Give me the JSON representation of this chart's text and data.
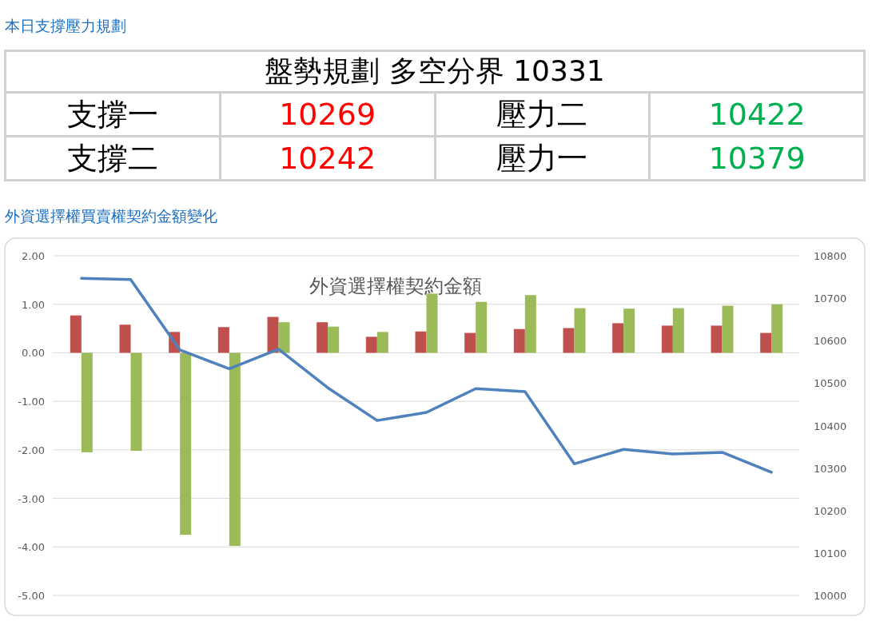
{
  "chart_data": [
    {
      "type": "other",
      "title": "本日支撐壓力規劃",
      "subtitle": "盤勢規劃 多空分界 10331",
      "annotations": [
        "支撐一",
        "10269",
        "壓力二",
        "10422",
        "支撐二",
        "10242",
        "壓力一",
        "10379"
      ],
      "colors": [
        "#000000",
        "#ff0000",
        "#000000",
        "#00b050",
        "#000000",
        "#ff0000",
        "#000000",
        "#00b050"
      ]
    },
    {
      "type": "bar",
      "title": "外資選擇權買賣權契約金額變化",
      "subtitle": "外資選擇權契約金額",
      "categories": [
        null,
        null,
        null,
        null,
        null,
        null,
        null,
        null,
        null,
        null,
        null,
        null,
        null,
        null,
        null
      ],
      "series": [
        {
          "color": "#c0504d",
          "values": [
            0.77,
            0.58,
            0.43,
            0.53,
            0.74,
            0.63,
            0.33,
            0.44,
            0.41,
            0.49,
            0.51,
            0.61,
            0.56,
            0.56,
            0.41
          ]
        },
        {
          "color": "#9bbb59",
          "values": [
            -2.05,
            -2.02,
            -3.75,
            -3.98,
            0.63,
            0.54,
            0.43,
            1.22,
            1.05,
            1.19,
            0.92,
            0.91,
            0.92,
            0.97,
            1.0
          ]
        },
        {
          "type": "line",
          "axis": "y2",
          "color": "#4f81bd",
          "values": [
            10747,
            10744,
            10578,
            10534,
            10580,
            10489,
            10412,
            10431,
            10487,
            10480,
            10310,
            10344,
            10333,
            10337,
            10290
          ]
        }
      ],
      "ylim": [
        -5,
        2
      ],
      "yticks": [
        {
          "value": 2,
          "label": "2.00"
        },
        {
          "value": 1,
          "label": "1.00"
        },
        {
          "value": 0,
          "label": "0.00"
        },
        {
          "value": -1,
          "label": "-1.00"
        },
        {
          "value": -2,
          "label": "-2.00"
        },
        {
          "value": -3,
          "label": "-3.00"
        },
        {
          "value": -4,
          "label": "-4.00"
        },
        {
          "value": -5,
          "label": "-5.00"
        }
      ],
      "y2lim": [
        10000,
        10800
      ],
      "y2ticks": [
        10000,
        10100,
        10200,
        10300,
        10400,
        10500,
        10600,
        10700,
        10800
      ],
      "grid": "y"
    }
  ]
}
